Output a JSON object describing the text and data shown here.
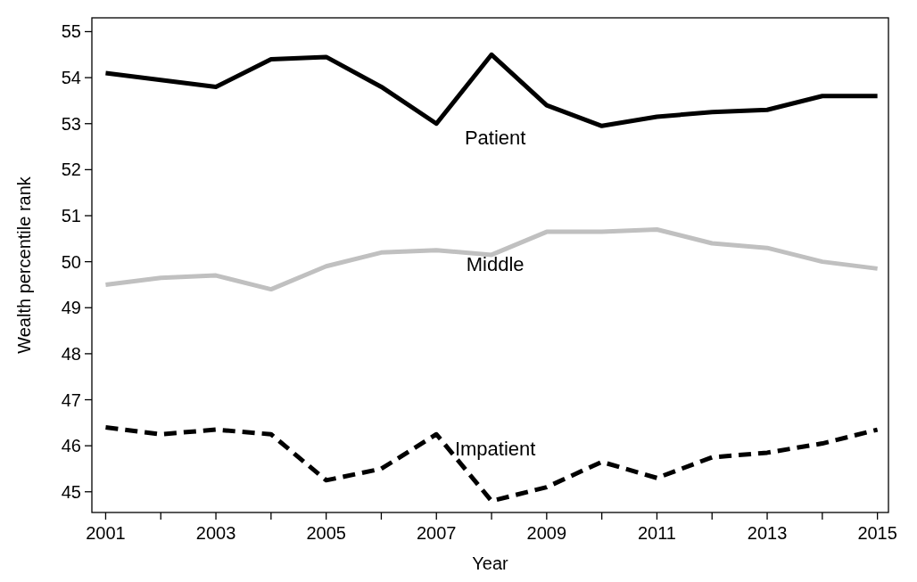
{
  "chart_data": {
    "type": "line",
    "xlabel": "Year",
    "ylabel": "Wealth percentile rank",
    "x": [
      2001,
      2002,
      2003,
      2004,
      2005,
      2006,
      2007,
      2008,
      2009,
      2010,
      2011,
      2012,
      2013,
      2014,
      2015
    ],
    "series": [
      {
        "name": "Patient",
        "color": "#000000",
        "line_style": "solid",
        "values": [
          54.1,
          53.95,
          53.8,
          54.4,
          54.45,
          53.8,
          53.0,
          54.5,
          53.4,
          52.95,
          53.15,
          53.25,
          53.3,
          53.6,
          53.6
        ]
      },
      {
        "name": "Middle",
        "color": "#c0c0c0",
        "line_style": "solid",
        "values": [
          49.5,
          49.65,
          49.7,
          49.4,
          49.9,
          50.2,
          50.25,
          50.15,
          50.65,
          50.65,
          50.7,
          50.4,
          50.3,
          50.0,
          49.85
        ]
      },
      {
        "name": "Impatient",
        "color": "#000000",
        "line_style": "dashed",
        "values": [
          46.4,
          46.25,
          46.35,
          46.25,
          45.25,
          45.5,
          46.25,
          44.8,
          45.1,
          45.65,
          45.3,
          45.75,
          45.85,
          46.05,
          46.35
        ]
      }
    ],
    "xlim": [
      2000.75,
      2015.2
    ],
    "ylim": [
      44.55,
      55.3
    ],
    "xticks": [
      2001,
      {
        "value": 2002,
        "label": null
      },
      2003,
      {
        "value": 2004,
        "label": null
      },
      2005,
      {
        "value": 2006,
        "label": null
      },
      2007,
      {
        "value": 2008,
        "label": null
      },
      2009,
      {
        "value": 2010,
        "label": null
      },
      2011,
      {
        "value": 2012,
        "label": null
      },
      2013,
      {
        "value": 2014,
        "label": null
      },
      2015
    ],
    "yticks": [
      45,
      46,
      47,
      48,
      49,
      50,
      51,
      52,
      53,
      54,
      55
    ],
    "grid": false,
    "marker": "none"
  }
}
